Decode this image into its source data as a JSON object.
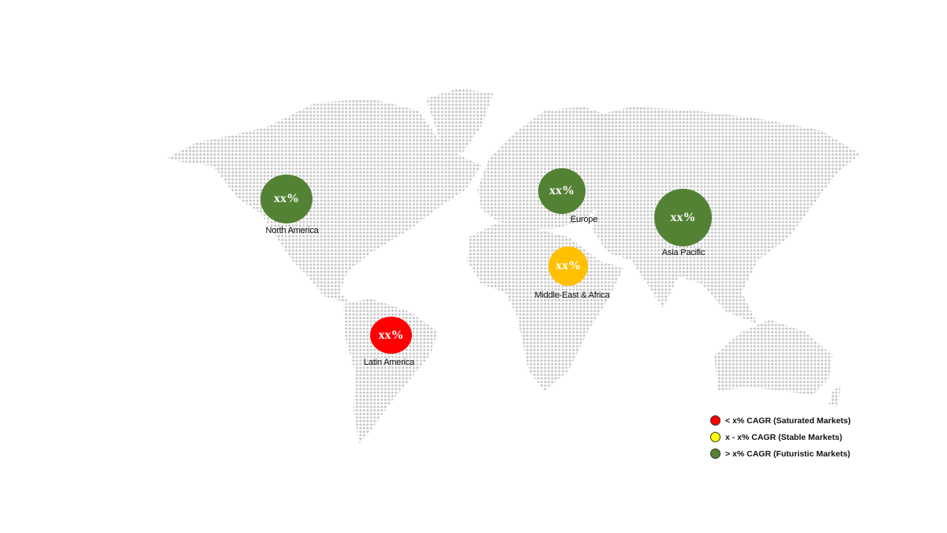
{
  "colors": {
    "green": "#548235",
    "yellow": "#FFC000",
    "red": "#FF0000",
    "map_dots": "#c8c8c8"
  },
  "regions": [
    {
      "name": "North America",
      "value": "xx%",
      "color": "#548235"
    },
    {
      "name": "Europe",
      "value": "xx%",
      "color": "#548235"
    },
    {
      "name": "Asia Pacific",
      "value": "xx%",
      "color": "#548235"
    },
    {
      "name": "Middle-East & Africa",
      "value": "xx%",
      "color": "#FFC000"
    },
    {
      "name": "Latin America",
      "value": "xx%",
      "color": "#FF0000"
    }
  ],
  "legend": [
    {
      "label": "< x% CAGR (Saturated Markets)",
      "color": "#FF0000"
    },
    {
      "label": "x - x% CAGR (Stable Markets)",
      "color": "#FFFF00"
    },
    {
      "label": "> x% CAGR (Futuristic Markets)",
      "color": "#548235"
    }
  ]
}
